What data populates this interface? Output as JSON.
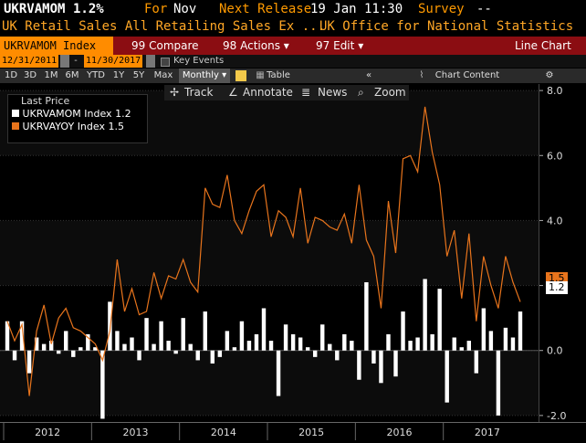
{
  "header": {
    "ticker": "UKRVAMOM",
    "value": "1.2%",
    "for_label": "For",
    "for_value": "Nov",
    "release_label": "Next Release",
    "release_value": "19 Jan 11:30",
    "survey_label": "Survey",
    "survey_value": "--"
  },
  "subheader": {
    "title": "UK Retail Sales All Retailing Sales Ex ...",
    "source": "UK Office for National Statistics"
  },
  "menu": {
    "ticker_box": "UKRVAMOM Index",
    "compare": "Compare",
    "compare_num": "99",
    "actions": "Actions",
    "actions_num": "98",
    "edit": "Edit",
    "edit_num": "97",
    "chart_type": "Line Chart"
  },
  "dates": {
    "start": "12/31/2011",
    "end": "11/30/2017",
    "key_events": "Key Events"
  },
  "periods": [
    "1D",
    "3D",
    "1M",
    "6M",
    "YTD",
    "1Y",
    "5Y",
    "Max"
  ],
  "periodicity": "Monthly",
  "table_label": "Table",
  "chart_content_label": "Chart Content",
  "tools": {
    "track": "Track",
    "annotate": "Annotate",
    "news": "News",
    "zoom": "Zoom"
  },
  "legend": {
    "title": "Last Price",
    "items": [
      {
        "name": "UKRVAMOM Index",
        "value": "1.2",
        "color": "#ffffff"
      },
      {
        "name": "UKRVAYOY Index",
        "value": "1.5",
        "color": "#e8741c"
      }
    ]
  },
  "last_value_tags": {
    "yoy": "1.5",
    "mom": "1.2"
  },
  "chart_data": {
    "type": "bar",
    "x": [
      "2012-01",
      "2012-02",
      "2012-03",
      "2012-04",
      "2012-05",
      "2012-06",
      "2012-07",
      "2012-08",
      "2012-09",
      "2012-10",
      "2012-11",
      "2012-12",
      "2013-01",
      "2013-02",
      "2013-03",
      "2013-04",
      "2013-05",
      "2013-06",
      "2013-07",
      "2013-08",
      "2013-09",
      "2013-10",
      "2013-11",
      "2013-12",
      "2014-01",
      "2014-02",
      "2014-03",
      "2014-04",
      "2014-05",
      "2014-06",
      "2014-07",
      "2014-08",
      "2014-09",
      "2014-10",
      "2014-11",
      "2014-12",
      "2015-01",
      "2015-02",
      "2015-03",
      "2015-04",
      "2015-05",
      "2015-06",
      "2015-07",
      "2015-08",
      "2015-09",
      "2015-10",
      "2015-11",
      "2015-12",
      "2016-01",
      "2016-02",
      "2016-03",
      "2016-04",
      "2016-05",
      "2016-06",
      "2016-07",
      "2016-08",
      "2016-09",
      "2016-10",
      "2016-11",
      "2016-12",
      "2017-01",
      "2017-02",
      "2017-03",
      "2017-04",
      "2017-05",
      "2017-06",
      "2017-07",
      "2017-08",
      "2017-09",
      "2017-10",
      "2017-11"
    ],
    "series": [
      {
        "name": "UKRVAMOM Index",
        "type": "bar",
        "values": [
          0.9,
          -0.3,
          0.9,
          -0.7,
          0.4,
          0.2,
          0.3,
          -0.1,
          0.6,
          -0.2,
          0.1,
          0.5,
          0.1,
          -2.1,
          1.5,
          0.6,
          0.2,
          0.4,
          -0.3,
          1.0,
          0.2,
          0.9,
          0.3,
          -0.1,
          1.0,
          0.2,
          -0.3,
          1.2,
          -0.4,
          -0.2,
          0.6,
          0.1,
          0.9,
          0.3,
          0.5,
          1.3,
          0.3,
          -1.4,
          0.8,
          0.5,
          0.4,
          0.1,
          -0.2,
          0.8,
          0.2,
          -0.3,
          0.5,
          0.3,
          -0.9,
          2.1,
          -0.4,
          -1.0,
          0.5,
          -0.8,
          1.2,
          0.3,
          0.4,
          2.2,
          0.5,
          1.9,
          -1.6,
          0.4,
          0.1,
          0.3,
          -0.7,
          1.3,
          0.6,
          -2.0,
          0.7,
          0.4,
          1.2
        ]
      },
      {
        "name": "UKRVAYOY Index",
        "type": "line",
        "values": [
          0.9,
          0.3,
          0.8,
          -1.4,
          0.6,
          1.4,
          0.2,
          1.0,
          1.3,
          0.7,
          0.6,
          0.4,
          0.2,
          -0.3,
          0.6,
          2.8,
          1.2,
          1.9,
          1.1,
          1.2,
          2.4,
          1.6,
          2.3,
          2.2,
          2.8,
          2.1,
          1.8,
          5.0,
          4.5,
          4.4,
          5.4,
          4.0,
          3.6,
          4.3,
          4.9,
          5.1,
          3.5,
          4.3,
          4.1,
          3.5,
          5.0,
          3.3,
          4.1,
          4.0,
          3.8,
          3.7,
          4.2,
          3.3,
          5.1,
          3.4,
          2.9,
          1.3,
          4.6,
          3.0,
          5.9,
          6.0,
          5.5,
          7.5,
          6.1,
          5.1,
          2.9,
          3.7,
          1.6,
          3.6,
          0.9,
          2.9,
          2.0,
          1.3,
          2.9,
          2.1,
          1.5
        ]
      }
    ],
    "ylim": [
      -2.2,
      8.2
    ],
    "yticks": [
      "8.0",
      "6.0",
      "4.0",
      "2.0",
      "0.0",
      "-2.0"
    ],
    "xticks": [
      "2012",
      "2013",
      "2014",
      "2015",
      "2016",
      "2017"
    ],
    "grid": true
  }
}
